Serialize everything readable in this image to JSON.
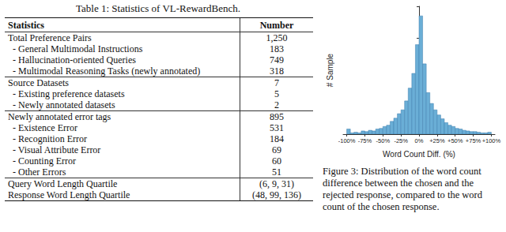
{
  "table": {
    "caption": "Table 1: Statistics of VL-RewardBench.",
    "header": [
      "Statistics",
      "Number"
    ],
    "groups": [
      [
        [
          "Total Preference Pairs",
          "1,250"
        ],
        [
          "- General Multimodal Instructions",
          "183"
        ],
        [
          "- Hallucination-oriented Queries",
          "749"
        ],
        [
          "- Multimodal Reasoning Tasks (newly annotated)",
          "318"
        ]
      ],
      [
        [
          "Source Datasets",
          "7"
        ],
        [
          "- Existing preference datasets",
          "5"
        ],
        [
          "- Newly annotated datasets",
          "2"
        ]
      ],
      [
        [
          "Newly annotated error tags",
          "895"
        ],
        [
          "- Existence Error",
          "531"
        ],
        [
          "- Recognition Error",
          "184"
        ],
        [
          "- Visual Attribute Error",
          "69"
        ],
        [
          "- Counting Error",
          "60"
        ],
        [
          "- Other Errors",
          "51"
        ]
      ],
      [
        [
          "Query Word Length Quartile",
          "(6, 9, 31)"
        ],
        [
          "Response Word Length Quartile",
          "(48, 99, 136)"
        ]
      ]
    ]
  },
  "chart_data": {
    "type": "histogram",
    "x_label": "Word Count Diff. (%)",
    "y_label": "# Sample",
    "bins": [
      -100,
      -95,
      -90,
      -85,
      -80,
      -75,
      -70,
      -65,
      -60,
      -55,
      -50,
      -45,
      -40,
      -35,
      -30,
      -25,
      -20,
      -15,
      -10,
      -5,
      0,
      5,
      10,
      15,
      20,
      25,
      30,
      35,
      40,
      45,
      50,
      55,
      60,
      65,
      70,
      75,
      80,
      85,
      90,
      95,
      100
    ],
    "values": [
      8,
      2,
      3,
      2,
      5,
      4,
      6,
      5,
      8,
      9,
      12,
      14,
      20,
      25,
      32,
      38,
      52,
      72,
      95,
      140,
      185,
      110,
      65,
      48,
      38,
      30,
      24,
      18,
      14,
      12,
      9,
      8,
      6,
      5,
      4,
      4,
      3,
      2,
      2,
      3
    ],
    "color": "#6aaed6",
    "xlim": [
      -105,
      105
    ],
    "xticks": [
      {
        "value": -100,
        "label": "-100%"
      },
      {
        "value": -75,
        "label": "-75%"
      },
      {
        "value": -50,
        "label": "-50%"
      },
      {
        "value": -25,
        "label": "-25%"
      },
      {
        "value": 0,
        "label": "0%"
      },
      {
        "value": 25,
        "label": "+25%"
      },
      {
        "value": 50,
        "label": "+50%"
      },
      {
        "value": 75,
        "label": "+75%"
      },
      {
        "value": 100,
        "label": "+100%"
      }
    ],
    "ylim": [
      0,
      200
    ],
    "yticks": [
      0,
      50,
      100,
      150,
      200
    ],
    "tick_labels": "x",
    "grid": false
  },
  "figure_caption": "Figure 3: Distribution of the word count difference between the chosen and the rejected response, compared to the word count of the chosen response."
}
